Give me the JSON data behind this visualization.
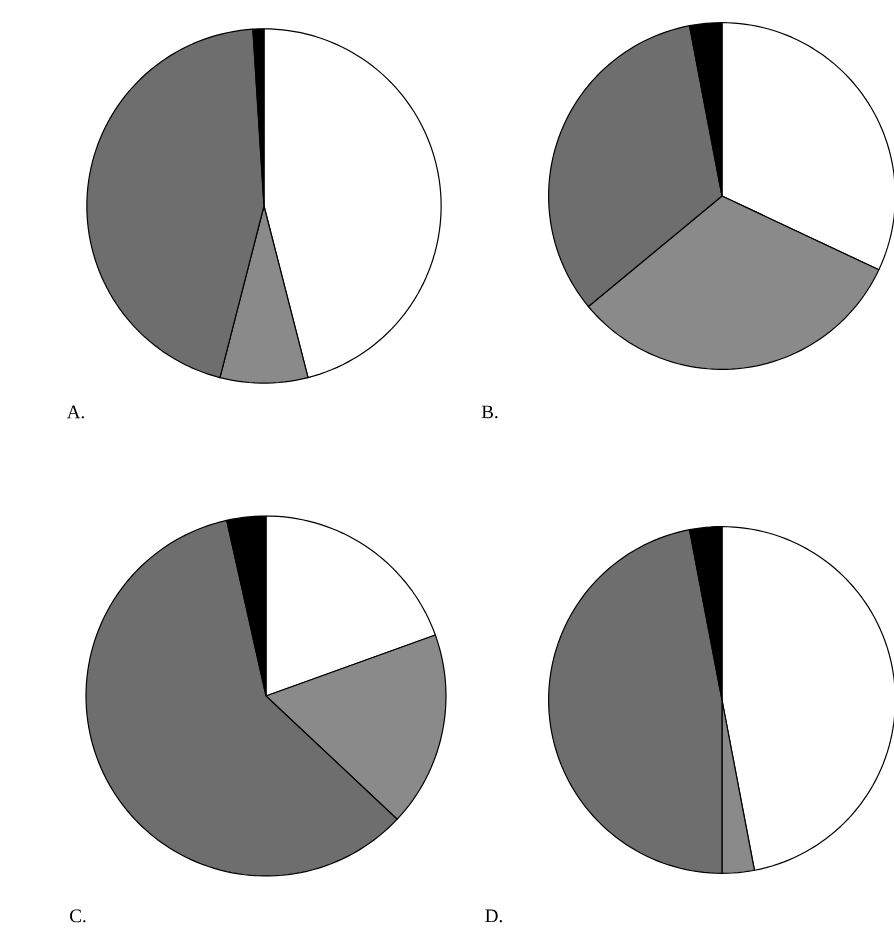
{
  "chart_data": [
    {
      "type": "pie",
      "title": "A.",
      "categories": [
        null,
        null,
        null,
        null
      ],
      "values": [
        46,
        8,
        45,
        1
      ],
      "colors": [
        "#ffffff",
        "#8a8a8a",
        "#6e6e6e",
        "#000000"
      ]
    },
    {
      "type": "pie",
      "title": "B.",
      "categories": [
        null,
        null,
        null,
        null
      ],
      "values": [
        32,
        32,
        33,
        3
      ],
      "colors": [
        "#ffffff",
        "#8a8a8a",
        "#6e6e6e",
        "#000000"
      ]
    },
    {
      "type": "pie",
      "title": "C.",
      "categories": [
        null,
        null,
        null,
        null
      ],
      "values": [
        19.5,
        17.5,
        59.5,
        3.5
      ],
      "colors": [
        "#ffffff",
        "#8a8a8a",
        "#6e6e6e",
        "#000000"
      ]
    },
    {
      "type": "pie",
      "title": "D.",
      "categories": [
        null,
        null,
        null,
        null
      ],
      "values": [
        47,
        3,
        47,
        3
      ],
      "colors": [
        "#ffffff",
        "#8a8a8a",
        "#6e6e6e",
        "#000000"
      ]
    }
  ]
}
